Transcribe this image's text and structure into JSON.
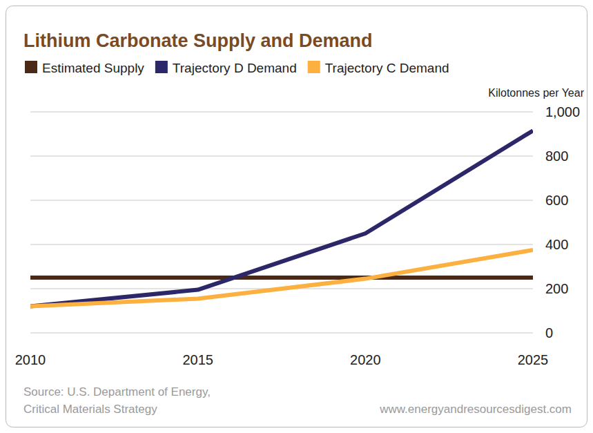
{
  "chart_data": {
    "type": "line",
    "title": "Lithium Carbonate Supply and Demand",
    "y_label": "Kilotonnes per Year",
    "x": [
      2010,
      2015,
      2020,
      2025
    ],
    "xlim": [
      2010,
      2025
    ],
    "xticks": [
      2010,
      2015,
      2020,
      2025
    ],
    "ylim": [
      0,
      1000
    ],
    "yticks": [
      0,
      200,
      400,
      600,
      800,
      {
        "value": 1000,
        "label": "1,000"
      }
    ],
    "grid": true,
    "legend": "top",
    "series": [
      {
        "name": "Estimated Supply",
        "color": "#4a2a17",
        "values": [
          250,
          250,
          250,
          250
        ]
      },
      {
        "name": "Trajectory D Demand",
        "color": "#2b2768",
        "values": [
          120,
          195,
          450,
          915
        ]
      },
      {
        "name": "Trajectory C Demand",
        "color": "#fbb040",
        "values": [
          120,
          155,
          245,
          375
        ]
      }
    ],
    "source": [
      "Source: U.S. Department of Energy,",
      "Critical Materials Strategy"
    ],
    "website": "www.energyandresourcesdigest.com"
  }
}
